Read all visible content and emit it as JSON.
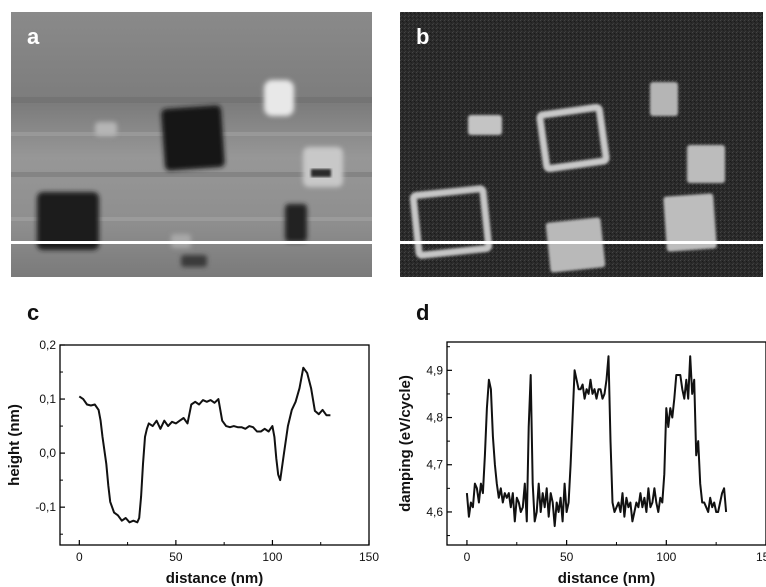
{
  "panels": {
    "a": {
      "label": "a"
    },
    "b": {
      "label": "b"
    },
    "c": {
      "label": "c"
    },
    "d": {
      "label": "d"
    }
  },
  "colors": {
    "trace": "#111111",
    "scan_line": "#ffffff",
    "axis": "#000000"
  },
  "chart_data": [
    {
      "panel": "c",
      "type": "line",
      "xlabel": "distance (nm)",
      "ylabel": "height (nm)",
      "xlim": [
        -10,
        150
      ],
      "ylim": [
        -0.17,
        0.2
      ],
      "xticks": [
        0,
        50,
        100,
        150
      ],
      "xtick_labels": [
        "0",
        "50",
        "100",
        "150"
      ],
      "yticks": [
        -0.1,
        0.0,
        0.1,
        0.2
      ],
      "ytick_labels": [
        "-0,1",
        "0,0",
        "0,1",
        "0,2"
      ],
      "x": [
        0,
        2,
        4,
        6,
        8,
        10,
        11,
        12,
        14,
        15,
        16,
        18,
        20,
        22,
        24,
        26,
        28,
        30,
        31,
        32,
        33,
        34,
        35,
        36,
        38,
        40,
        42,
        44,
        46,
        48,
        50,
        52,
        54,
        56,
        58,
        60,
        62,
        64,
        66,
        68,
        70,
        72,
        74,
        76,
        78,
        80,
        82,
        84,
        86,
        88,
        90,
        92,
        94,
        96,
        98,
        100,
        101,
        102,
        103,
        104,
        106,
        108,
        110,
        112,
        114,
        116,
        118,
        120,
        122,
        124,
        126,
        128,
        130
      ],
      "y": [
        0.105,
        0.1,
        0.09,
        0.088,
        0.09,
        0.08,
        0.06,
        0.03,
        -0.02,
        -0.06,
        -0.09,
        -0.11,
        -0.115,
        -0.125,
        -0.12,
        -0.128,
        -0.125,
        -0.128,
        -0.12,
        -0.08,
        -0.02,
        0.03,
        0.045,
        0.055,
        0.05,
        0.06,
        0.045,
        0.06,
        0.05,
        0.058,
        0.055,
        0.06,
        0.065,
        0.055,
        0.09,
        0.095,
        0.09,
        0.098,
        0.095,
        0.098,
        0.093,
        0.1,
        0.06,
        0.05,
        0.048,
        0.05,
        0.048,
        0.048,
        0.045,
        0.05,
        0.048,
        0.04,
        0.04,
        0.045,
        0.04,
        0.05,
        0.03,
        -0.01,
        -0.04,
        -0.05,
        0.0,
        0.05,
        0.08,
        0.095,
        0.12,
        0.158,
        0.148,
        0.12,
        0.078,
        0.072,
        0.08,
        0.07,
        0.07
      ]
    },
    {
      "panel": "d",
      "type": "line",
      "xlabel": "distance (nm)",
      "ylabel": "damping (eV/cycle)",
      "xlim": [
        -10,
        150
      ],
      "ylim": [
        4.53,
        4.96
      ],
      "xticks": [
        0,
        50,
        100,
        150
      ],
      "xtick_labels": [
        "0",
        "50",
        "100",
        "150"
      ],
      "yticks": [
        4.6,
        4.7,
        4.8,
        4.9
      ],
      "ytick_labels": [
        "4,6",
        "4,7",
        "4,8",
        "4,9"
      ],
      "x": [
        0,
        1,
        2,
        3,
        4,
        5,
        6,
        7,
        8,
        9,
        10,
        11,
        12,
        13,
        14,
        15,
        16,
        17,
        18,
        19,
        20,
        21,
        22,
        23,
        24,
        25,
        26,
        27,
        28,
        29,
        30,
        31,
        32,
        33,
        34,
        35,
        36,
        37,
        38,
        39,
        40,
        41,
        42,
        43,
        44,
        45,
        46,
        47,
        48,
        49,
        50,
        51,
        52,
        53,
        54,
        55,
        56,
        57,
        58,
        59,
        60,
        61,
        62,
        63,
        64,
        65,
        66,
        67,
        68,
        69,
        70,
        71,
        72,
        73,
        74,
        75,
        76,
        77,
        78,
        79,
        80,
        81,
        82,
        83,
        84,
        85,
        86,
        87,
        88,
        89,
        90,
        91,
        92,
        93,
        94,
        95,
        96,
        97,
        98,
        99,
        100,
        101,
        102,
        103,
        104,
        105,
        106,
        107,
        108,
        109,
        110,
        111,
        112,
        113,
        114,
        115,
        116,
        117,
        118,
        119,
        120,
        121,
        122,
        123,
        124,
        125,
        126,
        127,
        128,
        129,
        130
      ],
      "y": [
        4.64,
        4.59,
        4.62,
        4.61,
        4.66,
        4.65,
        4.62,
        4.66,
        4.64,
        4.72,
        4.82,
        4.88,
        4.86,
        4.76,
        4.7,
        4.66,
        4.63,
        4.65,
        4.62,
        4.64,
        4.63,
        4.64,
        4.61,
        4.64,
        4.58,
        4.63,
        4.62,
        4.6,
        4.61,
        4.66,
        4.58,
        4.78,
        4.89,
        4.66,
        4.58,
        4.6,
        4.66,
        4.6,
        4.64,
        4.61,
        4.65,
        4.59,
        4.64,
        4.62,
        4.57,
        4.62,
        4.6,
        4.63,
        4.58,
        4.66,
        4.6,
        4.62,
        4.7,
        4.8,
        4.9,
        4.88,
        4.86,
        4.86,
        4.87,
        4.84,
        4.86,
        4.85,
        4.88,
        4.85,
        4.86,
        4.84,
        4.86,
        4.86,
        4.84,
        4.85,
        4.88,
        4.93,
        4.75,
        4.62,
        4.6,
        4.61,
        4.62,
        4.6,
        4.64,
        4.59,
        4.63,
        4.61,
        4.62,
        4.58,
        4.6,
        4.62,
        4.61,
        4.64,
        4.61,
        4.63,
        4.6,
        4.65,
        4.61,
        4.62,
        4.65,
        4.62,
        4.6,
        4.63,
        4.62,
        4.68,
        4.82,
        4.78,
        4.82,
        4.8,
        4.84,
        4.89,
        4.89,
        4.89,
        4.86,
        4.84,
        4.88,
        4.84,
        4.93,
        4.85,
        4.88,
        4.72,
        4.75,
        4.66,
        4.62,
        4.62,
        4.61,
        4.6,
        4.63,
        4.61,
        4.62,
        4.6,
        4.6,
        4.62,
        4.64,
        4.65,
        4.6
      ]
    }
  ]
}
